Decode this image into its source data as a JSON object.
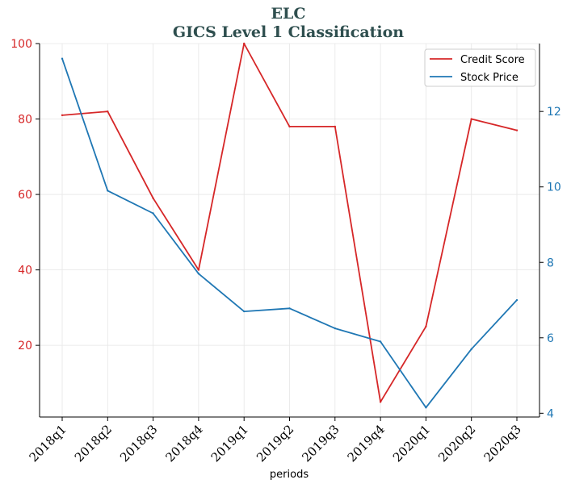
{
  "chart_data": {
    "type": "line",
    "title_line1": "ELC",
    "title_line2": "GICS Level 1 Classification",
    "xlabel": "periods",
    "ylabel_left": "",
    "ylabel_right": "",
    "categories": [
      "2018q1",
      "2018q2",
      "2018q3",
      "2018q4",
      "2019q1",
      "2019q2",
      "2019q3",
      "2019q4",
      "2020q1",
      "2020q2",
      "2020q3"
    ],
    "series": [
      {
        "name": "Credit Score",
        "axis": "left",
        "color": "#d62728",
        "values": [
          81,
          82,
          59,
          40,
          100,
          78,
          78,
          5,
          25,
          80,
          77
        ]
      },
      {
        "name": "Stock Price",
        "axis": "right",
        "color": "#1f77b4",
        "values": [
          13.4,
          9.9,
          9.3,
          7.7,
          6.7,
          6.78,
          6.25,
          5.9,
          4.15,
          5.7,
          7.0
        ]
      }
    ],
    "ylim_left": [
      1,
      100
    ],
    "ylim_right": [
      3.9,
      13.8
    ],
    "yticks_left": [
      20,
      40,
      60,
      80,
      100
    ],
    "yticks_right": [
      4,
      6,
      8,
      10,
      12
    ],
    "grid": true,
    "legend_position": "top-right"
  }
}
